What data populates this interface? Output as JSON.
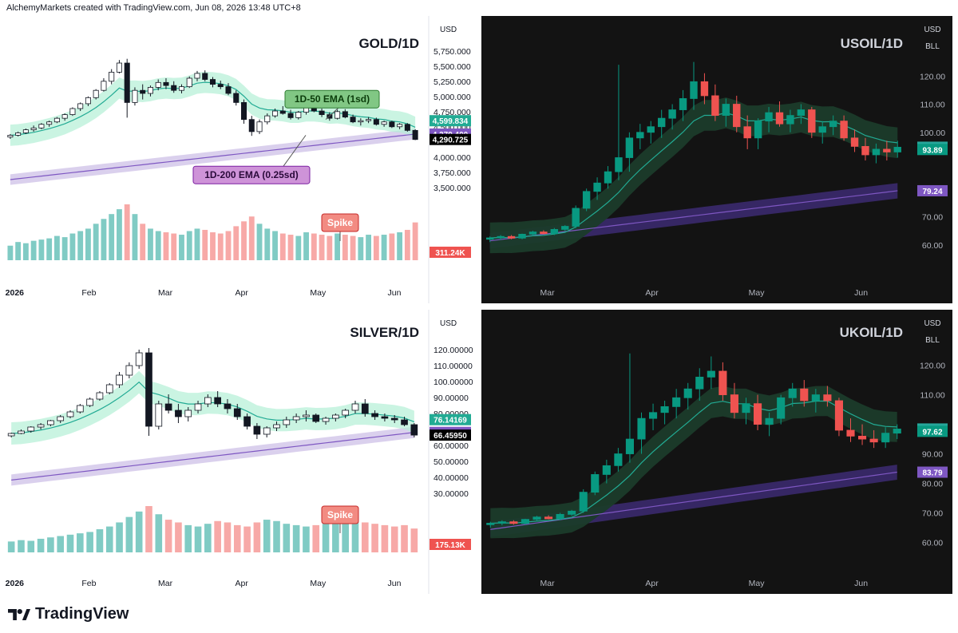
{
  "header": {
    "text": "AlchemyMarkets created with TradingView.com, Jun 08, 2026 13:48 UTC+8"
  },
  "footer": {
    "brand": "TradingView",
    "logo_icon": "tradingview-logo-icon"
  },
  "colors": {
    "up": "#26a69a",
    "down": "#ef5350",
    "ema50": "#22ab94",
    "band50": "#b3f0d6",
    "ema200": "#7e57c2",
    "band200": "#d1c4e9",
    "dark_bg": "#131313",
    "dark_band50": "#1b3b2a",
    "dark_band200": "#3b2a6e"
  },
  "panels": [
    {
      "id": "gold",
      "theme": "light",
      "title": "GOLD/1D",
      "currency": "USD",
      "y_ticks": [
        "5,750.000",
        "5,500.000",
        "5,250.000",
        "5,000.000",
        "4,750.000",
        "4,500.000",
        "4,000.000",
        "3,750.000",
        "3,500.000"
      ],
      "x_ticks": [
        "2026",
        "Feb",
        "Mar",
        "Apr",
        "May",
        "Jun"
      ],
      "price_tags": [
        {
          "text": "4,599.834",
          "color": "#22ab94"
        },
        {
          "text": "4,379.400",
          "color": "#7e57c2"
        },
        {
          "text": "4,290.725",
          "color": "#000000"
        },
        {
          "text": "311.24K",
          "color": "#ef5350"
        }
      ],
      "annotations": [
        {
          "text": "1D-50 EMA (1sd)",
          "style": "green"
        },
        {
          "text": "1D-200 EMA (0.25sd)",
          "style": "purple"
        },
        {
          "text": "Spike",
          "style": "red"
        }
      ]
    },
    {
      "id": "usoil",
      "theme": "dark",
      "title": "USOIL/1D",
      "currency": "USD",
      "unit": "BLL",
      "y_ticks": [
        "120.00",
        "110.00",
        "100.00",
        "70.00",
        "60.00"
      ],
      "x_ticks": [
        "Mar",
        "Apr",
        "May",
        "Jun"
      ],
      "price_tags": [
        {
          "text": "94.71",
          "color": "#26a69a"
        },
        {
          "text": "93.89",
          "color": "#089981"
        },
        {
          "text": "79.24",
          "color": "#7e57c2"
        }
      ]
    },
    {
      "id": "silver",
      "theme": "light",
      "title": "SILVER/1D",
      "currency": "USD",
      "y_ticks": [
        "120.00000",
        "110.00000",
        "100.00000",
        "90.00000",
        "80.00000",
        "60.00000",
        "50.00000",
        "40.00000",
        "30.00000"
      ],
      "x_ticks": [
        "2026",
        "Feb",
        "Mar",
        "Apr",
        "May",
        "Jun"
      ],
      "price_tags": [
        {
          "text": "76.14169",
          "color": "#22ab94"
        },
        {
          "text": "68.14309",
          "color": "#7e57c2"
        },
        {
          "text": "66.45950",
          "color": "#000000"
        },
        {
          "text": "175.13K",
          "color": "#ef5350"
        }
      ],
      "annotations": [
        {
          "text": "Spike",
          "style": "red"
        }
      ]
    },
    {
      "id": "ukoil",
      "theme": "dark",
      "title": "UKOIL/1D",
      "currency": "USD",
      "unit": "BLL",
      "y_ticks": [
        "120.00",
        "110.00",
        "90.00",
        "80.00",
        "70.00",
        "60.00"
      ],
      "x_ticks": [
        "Mar",
        "Apr",
        "May",
        "Jun"
      ],
      "price_tags": [
        {
          "text": "98.42",
          "color": "#26a69a"
        },
        {
          "text": "97.62",
          "color": "#089981"
        },
        {
          "text": "83.79",
          "color": "#7e57c2"
        }
      ]
    }
  ],
  "chart_data": [
    {
      "type": "candlestick",
      "title": "GOLD/1D",
      "ylabel": "USD",
      "x_ticks": [
        "2026",
        "Feb",
        "Mar",
        "Apr",
        "May",
        "Jun"
      ],
      "ylim": [
        3300,
        5800
      ],
      "candles": [
        [
          4330,
          4380,
          4300,
          4360
        ],
        [
          4360,
          4420,
          4340,
          4400
        ],
        [
          4400,
          4470,
          4380,
          4450
        ],
        [
          4450,
          4520,
          4420,
          4480
        ],
        [
          4480,
          4560,
          4460,
          4540
        ],
        [
          4540,
          4600,
          4500,
          4580
        ],
        [
          4580,
          4660,
          4560,
          4640
        ],
        [
          4640,
          4720,
          4600,
          4700
        ],
        [
          4700,
          4820,
          4680,
          4800
        ],
        [
          4800,
          4900,
          4760,
          4880
        ],
        [
          4880,
          5000,
          4840,
          4980
        ],
        [
          4980,
          5120,
          4950,
          5100
        ],
        [
          5100,
          5300,
          5080,
          5250
        ],
        [
          5250,
          5450,
          5200,
          5400
        ],
        [
          5400,
          5600,
          5380,
          5550
        ],
        [
          5550,
          5620,
          4650,
          4900
        ],
        [
          4900,
          5150,
          4850,
          5100
        ],
        [
          5100,
          5200,
          4950,
          5050
        ],
        [
          5050,
          5180,
          5000,
          5150
        ],
        [
          5150,
          5280,
          5100,
          5230
        ],
        [
          5230,
          5300,
          5120,
          5180
        ],
        [
          5180,
          5250,
          5060,
          5100
        ],
        [
          5100,
          5200,
          5050,
          5160
        ],
        [
          5160,
          5330,
          5140,
          5300
        ],
        [
          5300,
          5420,
          5250,
          5380
        ],
        [
          5380,
          5430,
          5250,
          5280
        ],
        [
          5280,
          5320,
          5150,
          5200
        ],
        [
          5200,
          5260,
          5120,
          5160
        ],
        [
          5160,
          5220,
          5020,
          5050
        ],
        [
          5050,
          5100,
          4850,
          4900
        ],
        [
          4900,
          4950,
          4550,
          4620
        ],
        [
          4620,
          4680,
          4350,
          4420
        ],
        [
          4420,
          4620,
          4380,
          4580
        ],
        [
          4580,
          4720,
          4540,
          4680
        ],
        [
          4680,
          4800,
          4650,
          4760
        ],
        [
          4760,
          4840,
          4700,
          4720
        ],
        [
          4720,
          4780,
          4620,
          4650
        ],
        [
          4650,
          4760,
          4620,
          4740
        ],
        [
          4740,
          4880,
          4700,
          4840
        ],
        [
          4840,
          4880,
          4740,
          4760
        ],
        [
          4760,
          4800,
          4660,
          4700
        ],
        [
          4700,
          4740,
          4600,
          4640
        ],
        [
          4640,
          4780,
          4620,
          4750
        ],
        [
          4750,
          4790,
          4640,
          4660
        ],
        [
          4660,
          4700,
          4560,
          4580
        ],
        [
          4580,
          4640,
          4520,
          4600
        ],
        [
          4600,
          4660,
          4560,
          4620
        ],
        [
          4620,
          4650,
          4520,
          4540
        ],
        [
          4540,
          4600,
          4500,
          4580
        ],
        [
          4580,
          4600,
          4480,
          4500
        ],
        [
          4500,
          4560,
          4460,
          4540
        ],
        [
          4540,
          4560,
          4420,
          4440
        ],
        [
          4440,
          4460,
          4280,
          4290
        ]
      ],
      "volume": [
        120,
        150,
        140,
        160,
        170,
        180,
        200,
        190,
        220,
        240,
        260,
        300,
        340,
        380,
        420,
        460,
        380,
        300,
        260,
        240,
        230,
        220,
        210,
        240,
        260,
        250,
        230,
        220,
        240,
        280,
        320,
        360,
        300,
        260,
        240,
        220,
        210,
        200,
        230,
        220,
        210,
        200,
        220,
        210,
        200,
        190,
        210,
        200,
        210,
        220,
        230,
        250,
        311.24
      ],
      "ema50_last": 4599.834,
      "ema200_last": 4379.4,
      "last": 4290.725,
      "last_volume": "311.24K"
    },
    {
      "type": "candlestick",
      "title": "USOIL/1D",
      "ylabel": "USD",
      "x_ticks": [
        "Mar",
        "Apr",
        "May",
        "Jun"
      ],
      "ylim": [
        52,
        130
      ],
      "candles": [
        [
          62,
          63,
          61,
          62.5
        ],
        [
          62.5,
          63.5,
          61.8,
          63
        ],
        [
          63,
          63.5,
          62,
          62.4
        ],
        [
          62.4,
          64,
          62,
          63.8
        ],
        [
          63.8,
          65,
          63.2,
          64.6
        ],
        [
          64.6,
          65.2,
          63.8,
          64
        ],
        [
          64,
          66,
          63.5,
          65.5
        ],
        [
          65.5,
          67,
          65,
          66.6
        ],
        [
          66.6,
          74,
          66,
          73
        ],
        [
          73,
          80,
          72,
          79
        ],
        [
          79,
          84,
          76,
          82
        ],
        [
          82,
          88,
          80,
          86
        ],
        [
          86,
          124,
          83,
          91
        ],
        [
          91,
          100,
          86,
          98
        ],
        [
          98,
          103,
          94,
          100
        ],
        [
          100,
          104,
          96,
          102
        ],
        [
          102,
          108,
          98,
          105
        ],
        [
          105,
          110,
          101,
          108
        ],
        [
          108,
          115,
          104,
          112
        ],
        [
          112,
          125,
          108,
          118
        ],
        [
          118,
          121,
          110,
          113
        ],
        [
          113,
          117,
          104,
          106
        ],
        [
          106,
          112,
          102,
          110
        ],
        [
          110,
          113,
          100,
          102
        ],
        [
          102,
          106,
          94,
          98
        ],
        [
          98,
          105,
          94,
          104
        ],
        [
          104,
          109,
          100,
          107
        ],
        [
          107,
          111,
          102,
          103
        ],
        [
          103,
          108,
          100,
          106
        ],
        [
          106,
          110,
          103,
          108
        ],
        [
          108,
          109,
          98,
          100
        ],
        [
          100,
          104,
          96,
          102
        ],
        [
          102,
          106,
          99,
          104
        ],
        [
          104,
          106,
          97,
          98
        ],
        [
          98,
          101,
          93,
          95
        ],
        [
          95,
          98,
          90,
          92
        ],
        [
          92,
          96,
          89,
          94
        ],
        [
          94,
          97,
          90,
          93
        ],
        [
          93,
          97,
          91,
          94.71
        ]
      ],
      "ema50_last": 93.89,
      "ema200_last": 79.24,
      "last": 94.71
    },
    {
      "type": "candlestick",
      "title": "SILVER/1D",
      "ylabel": "USD",
      "x_ticks": [
        "2026",
        "Feb",
        "Mar",
        "Apr",
        "May",
        "Jun"
      ],
      "ylim": [
        25,
        125
      ],
      "candles": [
        [
          66,
          68,
          65,
          67.5
        ],
        [
          67.5,
          70,
          67,
          69
        ],
        [
          69,
          72,
          68,
          71.5
        ],
        [
          71.5,
          74,
          70,
          73
        ],
        [
          73,
          76,
          72,
          75.5
        ],
        [
          75.5,
          79,
          74,
          78
        ],
        [
          78,
          82,
          77,
          81
        ],
        [
          81,
          86,
          80,
          85
        ],
        [
          85,
          90,
          84,
          89
        ],
        [
          89,
          94,
          88,
          93
        ],
        [
          93,
          99,
          92,
          98
        ],
        [
          98,
          106,
          96,
          104
        ],
        [
          104,
          112,
          102,
          110
        ],
        [
          110,
          120,
          108,
          118
        ],
        [
          118,
          121,
          66,
          72
        ],
        [
          72,
          88,
          70,
          86
        ],
        [
          86,
          92,
          80,
          82
        ],
        [
          82,
          86,
          74,
          78
        ],
        [
          78,
          84,
          75,
          82
        ],
        [
          82,
          88,
          80,
          86
        ],
        [
          86,
          92,
          84,
          90
        ],
        [
          90,
          94,
          84,
          86
        ],
        [
          86,
          89,
          80,
          83
        ],
        [
          83,
          86,
          76,
          78
        ],
        [
          78,
          80,
          70,
          72
        ],
        [
          72,
          74,
          64,
          67
        ],
        [
          67,
          72,
          65,
          71
        ],
        [
          71,
          75,
          69,
          73
        ],
        [
          73,
          78,
          71,
          76
        ],
        [
          76,
          80,
          74,
          78
        ],
        [
          78,
          82,
          75,
          79
        ],
        [
          79,
          80,
          74,
          75
        ],
        [
          75,
          78,
          73,
          77
        ],
        [
          77,
          80,
          75,
          79
        ],
        [
          79,
          83,
          77,
          82
        ],
        [
          82,
          88,
          80,
          86
        ],
        [
          86,
          89,
          78,
          80
        ],
        [
          80,
          82,
          76,
          78
        ],
        [
          78,
          80,
          75,
          77
        ],
        [
          77,
          79,
          74,
          76
        ],
        [
          76,
          78,
          72,
          73
        ],
        [
          73,
          74,
          65,
          66.46
        ]
      ],
      "volume": [
        80,
        90,
        85,
        100,
        110,
        120,
        130,
        140,
        150,
        170,
        190,
        220,
        260,
        300,
        340,
        280,
        240,
        220,
        200,
        190,
        210,
        230,
        220,
        200,
        190,
        220,
        240,
        230,
        210,
        200,
        190,
        200,
        210,
        220,
        230,
        240,
        220,
        210,
        200,
        190,
        200,
        175.13
      ],
      "ema50_last": 76.14169,
      "ema200_last": 68.14309,
      "last": 66.4595,
      "last_volume": "175.13K"
    },
    {
      "type": "candlestick",
      "title": "UKOIL/1D",
      "ylabel": "USD",
      "x_ticks": [
        "Mar",
        "Apr",
        "May",
        "Jun"
      ],
      "ylim": [
        55,
        128
      ],
      "candles": [
        [
          66,
          67,
          65,
          66.5
        ],
        [
          66.5,
          67.5,
          65.8,
          67
        ],
        [
          67,
          67.5,
          66,
          66.4
        ],
        [
          66.4,
          68,
          66,
          67.8
        ],
        [
          67.8,
          69,
          67.2,
          68.6
        ],
        [
          68.6,
          69.2,
          67.8,
          68
        ],
        [
          68,
          70,
          67.5,
          69.5
        ],
        [
          69.5,
          71,
          69,
          70.6
        ],
        [
          70.6,
          78,
          70,
          77
        ],
        [
          77,
          84,
          76,
          83
        ],
        [
          83,
          88,
          80,
          86
        ],
        [
          86,
          92,
          84,
          90
        ],
        [
          90,
          124,
          87,
          95
        ],
        [
          95,
          104,
          90,
          102
        ],
        [
          102,
          107,
          98,
          104
        ],
        [
          104,
          108,
          100,
          106
        ],
        [
          106,
          112,
          102,
          109
        ],
        [
          109,
          114,
          105,
          112
        ],
        [
          112,
          119,
          108,
          116
        ],
        [
          116,
          123,
          112,
          118
        ],
        [
          118,
          121,
          108,
          110
        ],
        [
          110,
          114,
          102,
          104
        ],
        [
          104,
          109,
          100,
          107
        ],
        [
          107,
          110,
          98,
          100
        ],
        [
          100,
          104,
          96,
          102
        ],
        [
          102,
          110,
          100,
          109
        ],
        [
          109,
          114,
          106,
          112
        ],
        [
          112,
          115,
          106,
          108
        ],
        [
          108,
          112,
          104,
          110
        ],
        [
          110,
          113,
          106,
          108
        ],
        [
          108,
          109,
          96,
          98
        ],
        [
          98,
          102,
          94,
          96
        ],
        [
          96,
          100,
          93,
          95
        ],
        [
          95,
          98,
          92,
          94
        ],
        [
          94,
          99,
          92,
          97
        ],
        [
          97,
          100,
          95,
          98.42
        ]
      ],
      "ema50_last": 97.62,
      "ema200_last": 83.79,
      "last": 98.42
    }
  ]
}
